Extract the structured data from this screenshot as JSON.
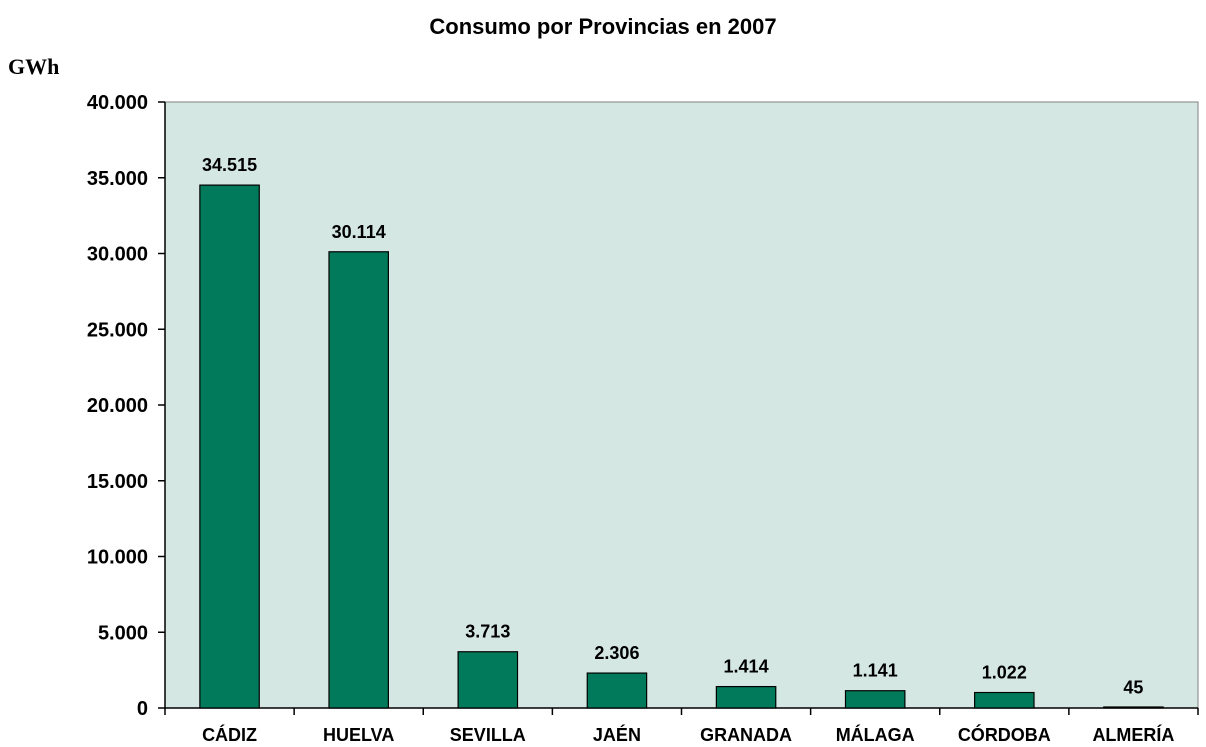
{
  "chart_data": {
    "type": "bar",
    "title": "Consumo por Provincias en 2007",
    "ylabel": "GWh",
    "xlabel": "",
    "categories": [
      "CÁDIZ",
      "HUELVA",
      "SEVILLA",
      "JAÉN",
      "GRANADA",
      "MÁLAGA",
      "CÓRDOBA",
      "ALMERÍA"
    ],
    "values": [
      34515,
      30114,
      3713,
      2306,
      1414,
      1141,
      1022,
      45
    ],
    "value_labels": [
      "34.515",
      "30.114",
      "3.713",
      "2.306",
      "1.414",
      "1.141",
      "1.022",
      "45"
    ],
    "ylim": [
      0,
      40000
    ],
    "yticks": [
      0,
      5000,
      10000,
      15000,
      20000,
      25000,
      30000,
      35000,
      40000
    ],
    "ytick_labels": [
      "0",
      "5.000",
      "10.000",
      "15.000",
      "20.000",
      "25.000",
      "30.000",
      "35.000",
      "40.000"
    ],
    "grid": false,
    "legend": "none",
    "colors": {
      "bar": "#007A5A",
      "plot_background": "#D4E7E3",
      "bar_outline": "#000000"
    }
  }
}
